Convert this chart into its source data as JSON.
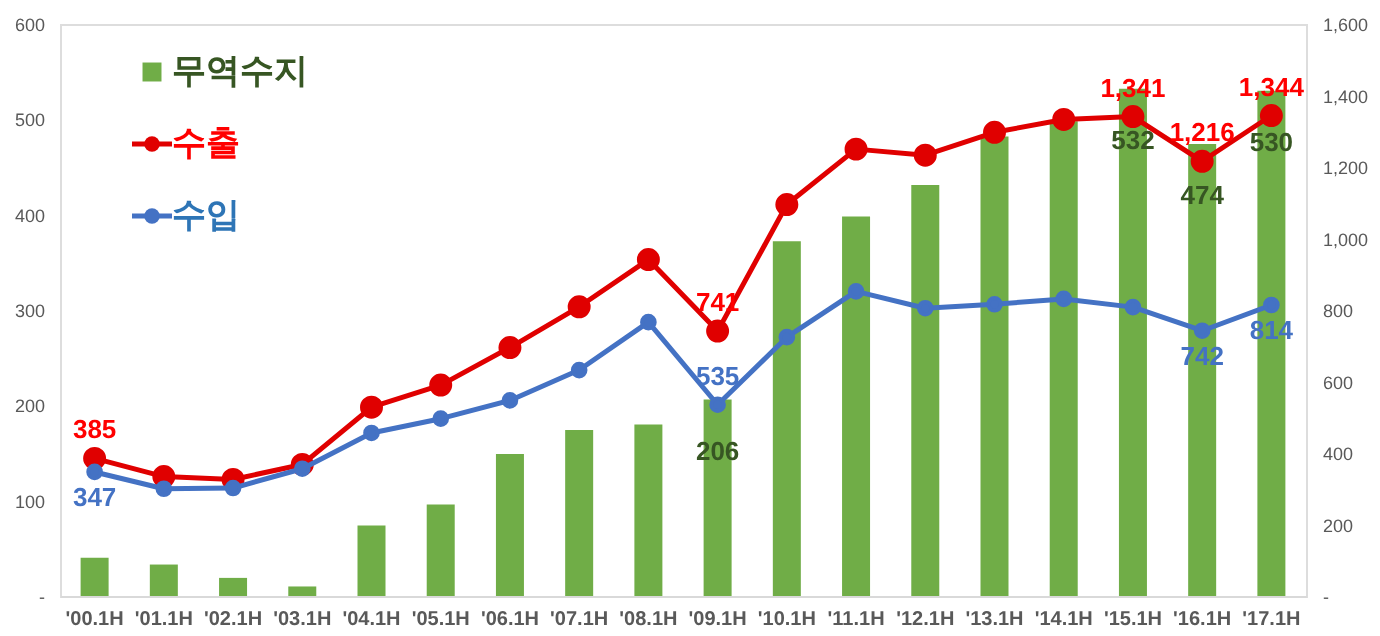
{
  "chart_data": {
    "type": "bar",
    "categories": [
      "'00.1H",
      "'01.1H",
      "'02.1H",
      "'03.1H",
      "'04.1H",
      "'05.1H",
      "'06.1H",
      "'07.1H",
      "'08.1H",
      "'09.1H",
      "'10.1H",
      "'11.1H",
      "'12.1H",
      "'13.1H",
      "'14.1H",
      "'15.1H",
      "'16.1H",
      "'17.1H"
    ],
    "legend": "top left",
    "marker": "circle",
    "grid": false,
    "ylim": [
      0,
      600
    ],
    "yticks": [
      {
        "value": 0,
        "label": "-"
      },
      100,
      200,
      300,
      400,
      500,
      600
    ],
    "y2lim": [
      0,
      1600
    ],
    "y2ticks": [
      {
        "value": 0,
        "label": "-"
      },
      200,
      400,
      600,
      800,
      {
        "value": 1000,
        "label": "1,000"
      },
      {
        "value": 1200,
        "label": "1,200"
      },
      {
        "value": 1400,
        "label": "1,400"
      },
      {
        "value": 1600,
        "label": "1,600"
      }
    ],
    "series": [
      {
        "name": "무역수지",
        "color": "#70ad47",
        "values": [
          40,
          33,
          19,
          10,
          74,
          96,
          149,
          174,
          180,
          206,
          372,
          398,
          431,
          482,
          498,
          532,
          474,
          530
        ],
        "value_labels": [
          null,
          null,
          null,
          null,
          null,
          null,
          null,
          null,
          null,
          "206",
          null,
          null,
          null,
          null,
          null,
          "532",
          "474",
          "530"
        ]
      },
      {
        "name": "수출",
        "type": "line",
        "axis": "y2",
        "color": "#e00000",
        "values": [
          385,
          334,
          326,
          368,
          528,
          590,
          695,
          809,
          941,
          741,
          1095,
          1250,
          1233,
          1297,
          1333,
          1341,
          1216,
          1344
        ],
        "value_labels": [
          "385",
          null,
          null,
          null,
          null,
          null,
          null,
          null,
          null,
          "741",
          null,
          null,
          null,
          null,
          null,
          "1,341",
          "1,216",
          "1,344"
        ]
      },
      {
        "name": "수입",
        "type": "line",
        "axis": "y2",
        "color": "#4472c4",
        "values": [
          347,
          300,
          302,
          356,
          456,
          496,
          547,
          632,
          766,
          535,
          724,
          852,
          805,
          816,
          831,
          808,
          742,
          814
        ],
        "value_labels": [
          "347",
          null,
          null,
          null,
          null,
          null,
          null,
          null,
          null,
          "535",
          null,
          null,
          null,
          null,
          null,
          null,
          "742",
          "814"
        ]
      }
    ]
  }
}
